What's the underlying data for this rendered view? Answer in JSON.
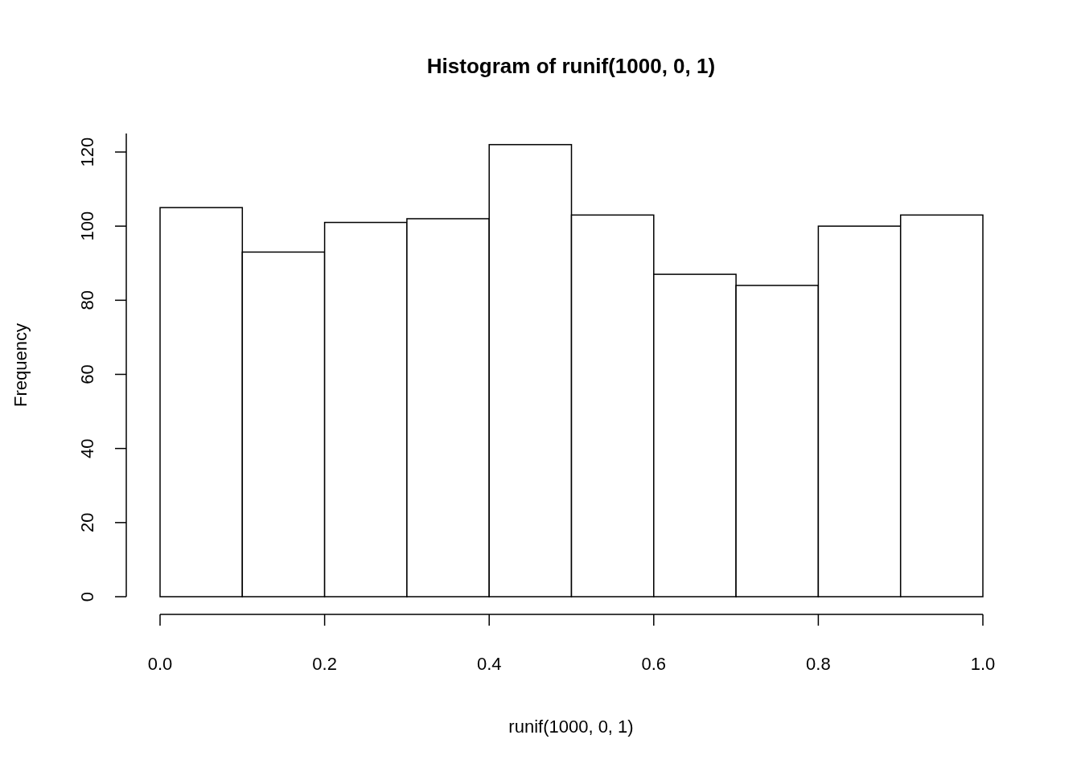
{
  "chart_data": {
    "type": "histogram",
    "title": "Histogram of runif(1000, 0, 1)",
    "xlabel": "runif(1000, 0, 1)",
    "ylabel": "Frequency",
    "bins": [
      0,
      0.1,
      0.2,
      0.3,
      0.4,
      0.5,
      0.6,
      0.7,
      0.8,
      0.9,
      1.0
    ],
    "values": [
      105,
      93,
      101,
      102,
      122,
      103,
      87,
      84,
      100,
      103
    ],
    "color": "#ffffff",
    "xlim": [
      0,
      1
    ],
    "ylim": [
      0,
      125
    ],
    "xticks": [
      {
        "value": 0,
        "label": "0.0"
      },
      {
        "value": 0.2,
        "label": "0.2"
      },
      {
        "value": 0.4,
        "label": "0.4"
      },
      {
        "value": 0.6,
        "label": "0.6"
      },
      {
        "value": 0.8,
        "label": "0.8"
      },
      {
        "value": 1,
        "label": "1.0"
      }
    ],
    "yticks": [
      0,
      20,
      40,
      60,
      80,
      100,
      120
    ],
    "grid": false
  }
}
